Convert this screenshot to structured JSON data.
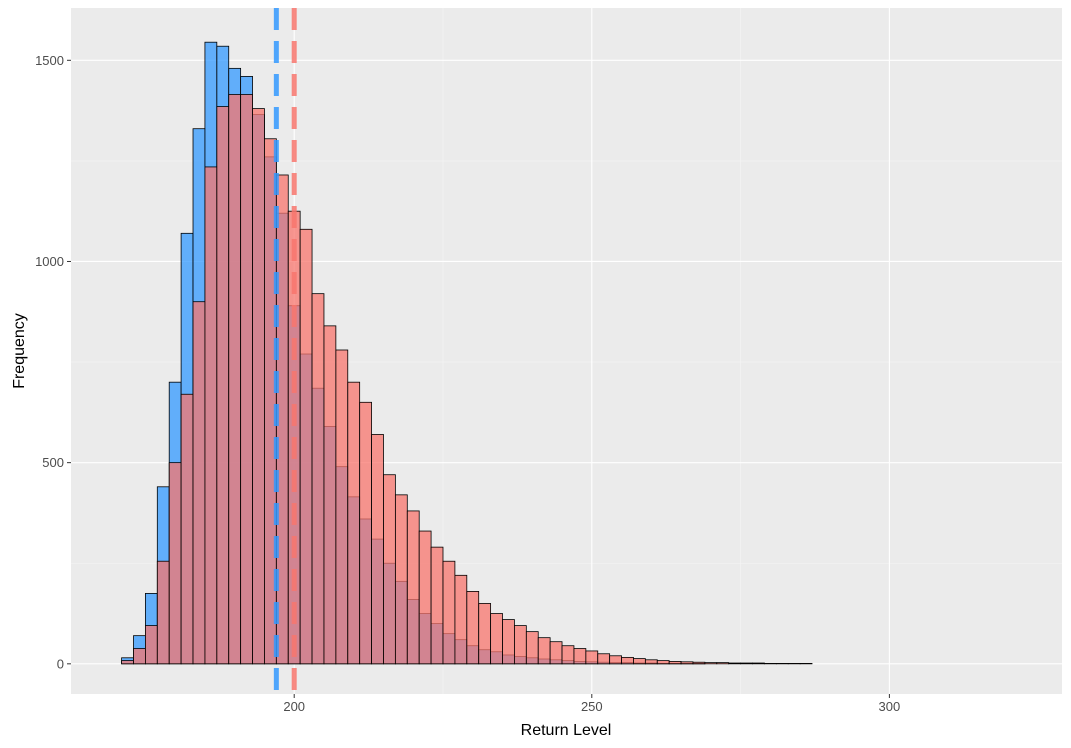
{
  "chart_data": {
    "type": "histogram",
    "xlabel": "Return Level",
    "ylabel": "Frequency",
    "xlim": [
      162.5,
      329
    ],
    "ylim": [
      -75,
      1630
    ],
    "x_ticks": [
      200,
      250,
      300
    ],
    "x_tick_labels": [
      "200",
      "250",
      "300"
    ],
    "y_ticks": [
      0,
      500,
      1000,
      1500
    ],
    "y_tick_labels": [
      "0",
      "500",
      "1000",
      "1500"
    ],
    "grid": true,
    "legend": "none",
    "bin_start": 171.0,
    "bin_width": 2.0,
    "series": [
      {
        "color": "#3399ff",
        "fill_alpha": 0.75,
        "mean_line": 197.0,
        "values": [
          15,
          70,
          175,
          440,
          700,
          1070,
          1330,
          1545,
          1535,
          1480,
          1460,
          1365,
          1260,
          1120,
          890,
          770,
          685,
          590,
          490,
          415,
          360,
          310,
          250,
          205,
          160,
          125,
          100,
          75,
          60,
          45,
          35,
          30,
          22,
          18,
          15,
          12,
          10,
          8,
          6,
          5,
          4,
          3,
          3,
          2,
          2,
          1,
          1,
          1,
          1,
          0,
          0,
          0,
          0,
          0,
          0,
          0,
          0,
          0,
          0,
          0,
          0,
          0,
          0,
          0,
          0,
          0,
          0,
          0,
          0,
          0,
          0,
          0,
          0,
          0,
          0,
          0,
          0
        ]
      },
      {
        "color": "#f8766d",
        "fill_alpha": 0.75,
        "mean_line": 200.0,
        "values": [
          8,
          38,
          95,
          255,
          500,
          670,
          900,
          1235,
          1385,
          1415,
          1415,
          1380,
          1305,
          1215,
          1125,
          1080,
          920,
          840,
          780,
          700,
          650,
          570,
          470,
          420,
          380,
          330,
          290,
          255,
          220,
          180,
          150,
          125,
          110,
          95,
          80,
          65,
          55,
          45,
          38,
          32,
          25,
          20,
          16,
          13,
          10,
          8,
          6,
          5,
          4,
          3,
          3,
          2,
          2,
          2,
          1,
          1,
          1,
          1,
          0,
          0,
          0,
          0,
          0,
          0,
          0,
          0,
          0,
          0,
          0,
          0,
          0,
          0,
          0,
          0,
          0,
          0,
          0
        ]
      }
    ]
  }
}
